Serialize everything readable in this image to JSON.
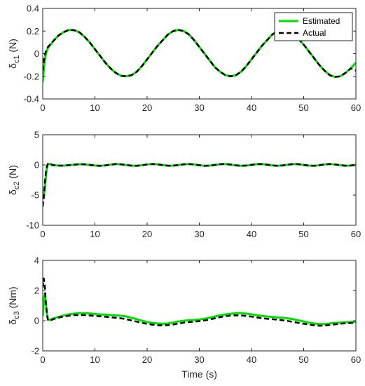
{
  "chart_data": [
    {
      "type": "line",
      "ylabel": "δc1 (N)",
      "ylabel_main": "δ",
      "ylabel_sub": "c1",
      "ylabel_unit": " (N)",
      "xlim": [
        0,
        60
      ],
      "ylim": [
        -0.4,
        0.4
      ],
      "xticks": [
        "0",
        "10",
        "20",
        "30",
        "40",
        "50",
        "60"
      ],
      "yticks": [
        "-0.4",
        "-0.2",
        "0",
        "0.2",
        "0.4"
      ],
      "xtick_values": [
        0,
        10,
        20,
        30,
        40,
        50,
        60
      ],
      "ytick_values": [
        -0.4,
        -0.2,
        0,
        0.2,
        0.4
      ],
      "legend": {
        "position": "top-right",
        "entries": [
          "Estimated",
          "Actual"
        ]
      },
      "series": [
        {
          "name": "Estimated",
          "color": "#00e000",
          "style": "solid",
          "x": [
            0,
            0.3,
            0.6,
            1,
            2,
            3,
            4,
            5,
            6,
            7,
            8,
            9,
            10,
            11,
            12,
            13,
            14,
            15,
            16,
            17,
            18,
            19,
            20,
            21,
            22,
            23,
            24,
            25,
            26,
            27,
            28,
            29,
            30,
            31,
            32,
            33,
            34,
            35,
            36,
            37,
            38,
            39,
            40,
            41,
            42,
            43,
            44,
            45,
            46,
            47,
            48,
            49,
            50,
            51,
            52,
            53,
            54,
            55,
            56,
            57,
            58,
            59,
            60
          ],
          "y": [
            -0.25,
            -0.1,
            0.0,
            0.05,
            0.11,
            0.16,
            0.19,
            0.21,
            0.208,
            0.19,
            0.15,
            0.1,
            0.04,
            -0.02,
            -0.08,
            -0.13,
            -0.17,
            -0.195,
            -0.2,
            -0.19,
            -0.16,
            -0.11,
            -0.05,
            0.01,
            0.07,
            0.12,
            0.17,
            0.2,
            0.21,
            0.2,
            0.17,
            0.12,
            0.06,
            0.0,
            -0.06,
            -0.12,
            -0.16,
            -0.19,
            -0.2,
            -0.19,
            -0.16,
            -0.11,
            -0.05,
            0.01,
            0.07,
            0.12,
            0.17,
            0.2,
            0.21,
            0.2,
            0.17,
            0.13,
            0.08,
            0.02,
            -0.04,
            -0.1,
            -0.15,
            -0.19,
            -0.205,
            -0.2,
            -0.17,
            -0.13,
            -0.08
          ]
        },
        {
          "name": "Actual",
          "color": "#000000",
          "style": "dashed",
          "x": [
            0,
            0.3,
            0.6,
            1,
            2,
            3,
            4,
            5,
            6,
            7,
            8,
            9,
            10,
            11,
            12,
            13,
            14,
            15,
            16,
            17,
            18,
            19,
            20,
            21,
            22,
            23,
            24,
            25,
            26,
            27,
            28,
            29,
            30,
            31,
            32,
            33,
            34,
            35,
            36,
            37,
            38,
            39,
            40,
            41,
            42,
            43,
            44,
            45,
            46,
            47,
            48,
            49,
            50,
            51,
            52,
            53,
            54,
            55,
            56,
            57,
            58,
            59,
            60
          ],
          "y": [
            -0.15,
            -0.03,
            0.02,
            0.06,
            0.11,
            0.16,
            0.19,
            0.21,
            0.208,
            0.19,
            0.15,
            0.1,
            0.04,
            -0.02,
            -0.08,
            -0.13,
            -0.17,
            -0.195,
            -0.2,
            -0.19,
            -0.16,
            -0.11,
            -0.05,
            0.01,
            0.07,
            0.12,
            0.17,
            0.2,
            0.21,
            0.2,
            0.17,
            0.12,
            0.06,
            0.0,
            -0.06,
            -0.12,
            -0.16,
            -0.19,
            -0.2,
            -0.19,
            -0.16,
            -0.11,
            -0.05,
            0.01,
            0.07,
            0.12,
            0.17,
            0.2,
            0.21,
            0.2,
            0.17,
            0.13,
            0.08,
            0.02,
            -0.04,
            -0.1,
            -0.15,
            -0.19,
            -0.205,
            -0.2,
            -0.17,
            -0.13,
            -0.15
          ]
        }
      ]
    },
    {
      "type": "line",
      "ylabel": "δc2 (N)",
      "ylabel_main": "δ",
      "ylabel_sub": "c2",
      "ylabel_unit": " (N)",
      "xlim": [
        0,
        60
      ],
      "ylim": [
        -10,
        5
      ],
      "xticks": [
        "0",
        "10",
        "20",
        "30",
        "40",
        "50",
        "60"
      ],
      "yticks": [
        "-10",
        "-5",
        "0",
        "5"
      ],
      "xtick_values": [
        0,
        10,
        20,
        30,
        40,
        50,
        60
      ],
      "ytick_values": [
        -10,
        -5,
        0,
        5
      ],
      "series": [
        {
          "name": "Estimated",
          "color": "#00e000",
          "style": "solid",
          "x": [
            0,
            0.2,
            0.4,
            0.6,
            0.8,
            1.0,
            1.3,
            1.7,
            2,
            3,
            4,
            5,
            6,
            7,
            8,
            9,
            10,
            11,
            12,
            13,
            14,
            15,
            16,
            17,
            18,
            19,
            20,
            21,
            22,
            23,
            24,
            25,
            26,
            27,
            28,
            29,
            30,
            31,
            32,
            33,
            34,
            35,
            36,
            37,
            38,
            39,
            40,
            41,
            42,
            43,
            44,
            45,
            46,
            47,
            48,
            49,
            50,
            51,
            52,
            53,
            54,
            55,
            56,
            57,
            58,
            59,
            60
          ],
          "y": [
            -4.8,
            -4.9,
            -4.2,
            -2.0,
            -0.5,
            0.1,
            0.2,
            0.05,
            -0.05,
            -0.1,
            -0.12,
            -0.05,
            0.05,
            0.12,
            0.1,
            0.0,
            -0.1,
            -0.14,
            -0.08,
            0.05,
            0.14,
            0.1,
            -0.02,
            -0.12,
            -0.14,
            -0.05,
            0.08,
            0.15,
            0.1,
            -0.03,
            -0.13,
            -0.12,
            -0.02,
            0.1,
            0.15,
            0.08,
            -0.05,
            -0.14,
            -0.12,
            0.0,
            0.12,
            0.15,
            0.06,
            -0.07,
            -0.14,
            -0.1,
            0.02,
            0.13,
            0.14,
            0.04,
            -0.08,
            -0.14,
            -0.08,
            0.05,
            0.14,
            0.12,
            0.0,
            -0.11,
            -0.14,
            -0.05,
            0.08,
            0.15,
            0.08,
            -0.05,
            -0.13,
            -0.1,
            0.02
          ]
        },
        {
          "name": "Actual",
          "color": "#000000",
          "style": "dashed",
          "x": [
            0,
            0.2,
            0.4,
            0.6,
            0.8,
            1.0,
            1.3,
            1.7,
            2,
            3,
            4,
            5,
            6,
            7,
            8,
            9,
            10,
            11,
            12,
            13,
            14,
            15,
            16,
            17,
            18,
            19,
            20,
            21,
            22,
            23,
            24,
            25,
            26,
            27,
            28,
            29,
            30,
            31,
            32,
            33,
            34,
            35,
            36,
            37,
            38,
            39,
            40,
            41,
            42,
            43,
            44,
            45,
            46,
            47,
            48,
            49,
            50,
            51,
            52,
            53,
            54,
            55,
            56,
            57,
            58,
            59,
            60
          ],
          "y": [
            -6.9,
            -5.5,
            -3.0,
            -1.2,
            -0.2,
            0.2,
            0.25,
            0.05,
            -0.05,
            -0.1,
            -0.12,
            -0.05,
            0.05,
            0.12,
            0.1,
            0.0,
            -0.1,
            -0.14,
            -0.08,
            0.05,
            0.14,
            0.1,
            -0.02,
            -0.12,
            -0.14,
            -0.05,
            0.08,
            0.15,
            0.1,
            -0.03,
            -0.13,
            -0.12,
            -0.02,
            0.1,
            0.15,
            0.08,
            -0.05,
            -0.14,
            -0.12,
            0.0,
            0.12,
            0.15,
            0.06,
            -0.07,
            -0.14,
            -0.1,
            0.02,
            0.13,
            0.14,
            0.04,
            -0.08,
            -0.14,
            -0.08,
            0.05,
            0.14,
            0.12,
            0.0,
            -0.11,
            -0.14,
            -0.05,
            0.08,
            0.15,
            0.08,
            -0.05,
            -0.13,
            -0.1,
            0.02
          ]
        }
      ]
    },
    {
      "type": "line",
      "ylabel": "δc3 (Nm)",
      "ylabel_main": "δ",
      "ylabel_sub": "c3",
      "ylabel_unit": " (Nm)",
      "xlabel": "Time (s)",
      "xlim": [
        0,
        60
      ],
      "ylim": [
        -2,
        4
      ],
      "xticks": [
        "0",
        "10",
        "20",
        "30",
        "40",
        "50",
        "60"
      ],
      "yticks": [
        "-2",
        "0",
        "2",
        "4"
      ],
      "xtick_values": [
        0,
        10,
        20,
        30,
        40,
        50,
        60
      ],
      "ytick_values": [
        -2,
        0,
        2,
        4
      ],
      "series": [
        {
          "name": "Estimated",
          "color": "#00e000",
          "style": "solid",
          "x": [
            0,
            0.2,
            0.4,
            0.6,
            0.8,
            1.0,
            1.3,
            2,
            3,
            4,
            5,
            6,
            7,
            8,
            9,
            10,
            11,
            12,
            13,
            14,
            15,
            16,
            17,
            18,
            19,
            20,
            21,
            22,
            23,
            24,
            25,
            26,
            27,
            28,
            29,
            30,
            31,
            32,
            33,
            34,
            35,
            36,
            37,
            38,
            39,
            40,
            41,
            42,
            43,
            44,
            45,
            46,
            47,
            48,
            49,
            50,
            51,
            52,
            53,
            54,
            55,
            56,
            57,
            58,
            59,
            60
          ],
          "y": [
            0.3,
            1.2,
            1.8,
            1.2,
            0.5,
            0.1,
            0.05,
            0.15,
            0.25,
            0.35,
            0.42,
            0.47,
            0.5,
            0.5,
            0.48,
            0.45,
            0.42,
            0.4,
            0.38,
            0.36,
            0.33,
            0.28,
            0.2,
            0.1,
            0.0,
            -0.08,
            -0.15,
            -0.18,
            -0.2,
            -0.18,
            -0.12,
            -0.05,
            0.0,
            0.03,
            0.05,
            0.08,
            0.13,
            0.2,
            0.28,
            0.36,
            0.42,
            0.46,
            0.5,
            0.5,
            0.47,
            0.42,
            0.37,
            0.32,
            0.28,
            0.25,
            0.22,
            0.2,
            0.15,
            0.1,
            0.03,
            -0.05,
            -0.13,
            -0.18,
            -0.22,
            -0.22,
            -0.18,
            -0.15,
            -0.12,
            -0.1,
            -0.08,
            -0.07
          ]
        },
        {
          "name": "Actual",
          "color": "#000000",
          "style": "dashed",
          "x": [
            0,
            0.2,
            0.4,
            0.6,
            0.8,
            1.0,
            1.3,
            2,
            3,
            4,
            5,
            6,
            7,
            8,
            9,
            10,
            11,
            12,
            13,
            14,
            15,
            16,
            17,
            18,
            19,
            20,
            21,
            22,
            23,
            24,
            25,
            26,
            27,
            28,
            29,
            30,
            31,
            32,
            33,
            34,
            35,
            36,
            37,
            38,
            39,
            40,
            41,
            42,
            43,
            44,
            45,
            46,
            47,
            48,
            49,
            50,
            51,
            52,
            53,
            54,
            55,
            56,
            57,
            58,
            59,
            60
          ],
          "y": [
            2.2,
            2.8,
            2.3,
            1.2,
            0.4,
            0.05,
            0.0,
            0.1,
            0.2,
            0.28,
            0.33,
            0.37,
            0.38,
            0.37,
            0.35,
            0.32,
            0.29,
            0.26,
            0.23,
            0.2,
            0.16,
            0.1,
            0.02,
            -0.06,
            -0.14,
            -0.21,
            -0.26,
            -0.3,
            -0.31,
            -0.29,
            -0.25,
            -0.19,
            -0.13,
            -0.09,
            -0.06,
            -0.03,
            0.02,
            0.08,
            0.16,
            0.24,
            0.3,
            0.34,
            0.36,
            0.35,
            0.32,
            0.27,
            0.22,
            0.17,
            0.13,
            0.1,
            0.07,
            0.03,
            -0.02,
            -0.08,
            -0.14,
            -0.2,
            -0.26,
            -0.3,
            -0.33,
            -0.32,
            -0.28,
            -0.24,
            -0.2,
            -0.17,
            -0.15,
            -0.13
          ]
        }
      ]
    }
  ]
}
